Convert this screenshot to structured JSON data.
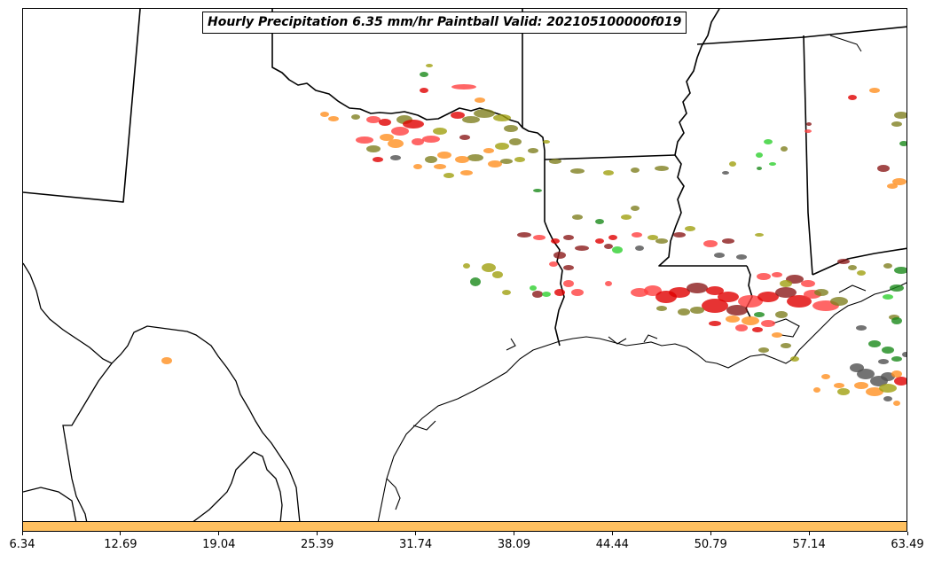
{
  "title": "Hourly Precipitation 6.35 mm/hr Paintball Valid: 202105100000f019",
  "colorbar": {
    "color": "#ffc060",
    "ticks": [
      "6.34",
      "12.69",
      "19.04",
      "25.39",
      "31.74",
      "38.09",
      "44.44",
      "50.79",
      "57.14",
      "63.49"
    ]
  },
  "map": {
    "border_color": "#000000",
    "paintball_colors": [
      "#ff4040",
      "#e00000",
      "#8b1a1a",
      "#ff9020",
      "#808020",
      "#a0a010",
      "#1a8a1a",
      "#30d030",
      "#505050"
    ]
  }
}
